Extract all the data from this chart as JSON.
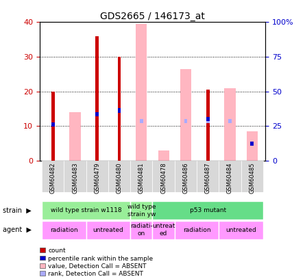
{
  "title": "GDS2665 / 146173_at",
  "samples": [
    "GSM60482",
    "GSM60483",
    "GSM60479",
    "GSM60480",
    "GSM60481",
    "GSM60478",
    "GSM60486",
    "GSM60487",
    "GSM60484",
    "GSM60485"
  ],
  "count_values": [
    20,
    0,
    36,
    30,
    0,
    0,
    0,
    20.5,
    0,
    0
  ],
  "pink_bar_values": [
    0,
    14,
    0,
    0,
    39.5,
    3,
    26.5,
    0,
    21,
    8.5
  ],
  "blue_marker_values": [
    10.5,
    0,
    13.5,
    14.5,
    0,
    0,
    0,
    12,
    0,
    5
  ],
  "blue_absent_values": [
    0,
    0,
    0,
    0,
    11.5,
    0,
    11.5,
    11.5,
    11.5,
    0
  ],
  "ylim": [
    0,
    40
  ],
  "y2lim": [
    0,
    100
  ],
  "yticks": [
    0,
    10,
    20,
    30,
    40
  ],
  "y2ticks": [
    0,
    25,
    50,
    75,
    100
  ],
  "y2ticklabels": [
    "0",
    "25",
    "50",
    "75",
    "100%"
  ],
  "strain_defs": [
    {
      "start": 0,
      "end": 3,
      "label": "wild type strain w1118",
      "color": "#99EE99"
    },
    {
      "start": 4,
      "end": 4,
      "label": "wild type\nstrain yw",
      "color": "#99EE99"
    },
    {
      "start": 5,
      "end": 9,
      "label": "p53 mutant",
      "color": "#66DD88"
    }
  ],
  "agent_defs": [
    {
      "start": 0,
      "end": 1,
      "label": "radiation",
      "color": "#FF99FF"
    },
    {
      "start": 2,
      "end": 3,
      "label": "untreated",
      "color": "#FF99FF"
    },
    {
      "start": 4,
      "end": 4,
      "label": "radiati-\non",
      "color": "#FF99FF"
    },
    {
      "start": 5,
      "end": 5,
      "label": "untreat\ned",
      "color": "#FF99FF"
    },
    {
      "start": 6,
      "end": 7,
      "label": "radiation",
      "color": "#FF99FF"
    },
    {
      "start": 8,
      "end": 9,
      "label": "untreated",
      "color": "#FF99FF"
    }
  ],
  "colors": {
    "red_bar": "#CC0000",
    "pink_bar": "#FFB6C1",
    "blue_dot": "#0000CC",
    "blue_absent": "#AAAAFF",
    "background": "#FFFFFF",
    "tick_left": "#CC0000",
    "tick_right": "#0000CC",
    "xtick_bg": "#D8D8D8"
  },
  "legend_items": [
    {
      "color": "#CC0000",
      "label": "count"
    },
    {
      "color": "#0000CC",
      "label": "percentile rank within the sample"
    },
    {
      "color": "#FFB6C1",
      "label": "value, Detection Call = ABSENT"
    },
    {
      "color": "#AAAAFF",
      "label": "rank, Detection Call = ABSENT"
    }
  ]
}
